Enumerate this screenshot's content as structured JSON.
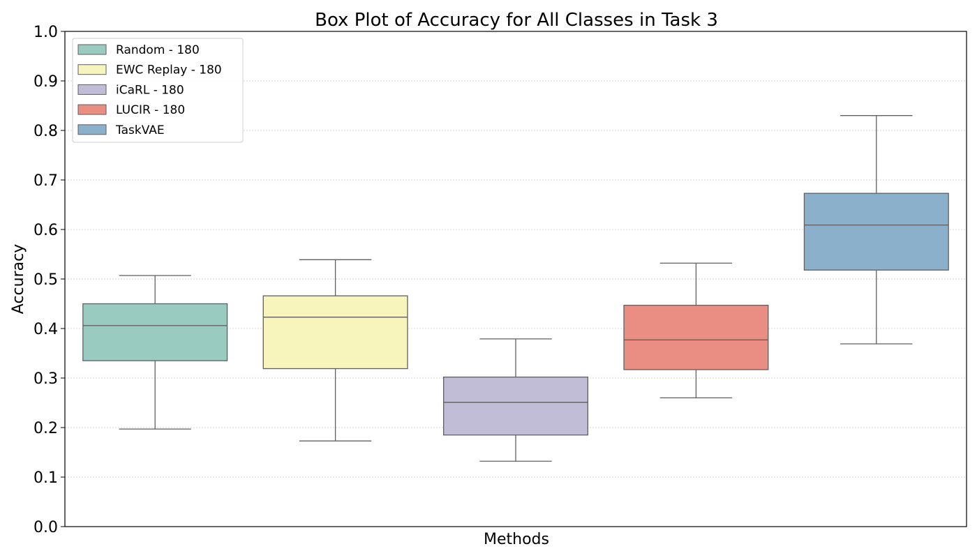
{
  "chart_data": {
    "type": "box",
    "title": "Box Plot of Accuracy for All Classes in Task 3",
    "xlabel": "Methods",
    "ylabel": "Accuracy",
    "ylim": [
      0.0,
      1.0
    ],
    "yticks": [
      "0.0",
      "0.1",
      "0.2",
      "0.3",
      "0.4",
      "0.5",
      "0.6",
      "0.7",
      "0.8",
      "0.9",
      "1.0"
    ],
    "grid": "horizontal dotted",
    "legend_position": "upper-left",
    "series": [
      {
        "name": "Random - 180",
        "color": "#99cbc1",
        "min": 0.197,
        "q1": 0.335,
        "median": 0.406,
        "q3": 0.45,
        "max": 0.507
      },
      {
        "name": "EWC Replay - 180",
        "color": "#f7f5bb",
        "min": 0.173,
        "q1": 0.319,
        "median": 0.423,
        "q3": 0.466,
        "max": 0.539
      },
      {
        "name": "iCaRL - 180",
        "color": "#c1bdd6",
        "min": 0.132,
        "q1": 0.185,
        "median": 0.251,
        "q3": 0.302,
        "max": 0.379
      },
      {
        "name": "LUCIR - 180",
        "color": "#ea8e83",
        "min": 0.26,
        "q1": 0.317,
        "median": 0.377,
        "q3": 0.447,
        "max": 0.532
      },
      {
        "name": "TaskVAE",
        "color": "#8bb0cc",
        "min": 0.369,
        "q1": 0.518,
        "median": 0.609,
        "q3": 0.673,
        "max": 0.83
      }
    ]
  }
}
